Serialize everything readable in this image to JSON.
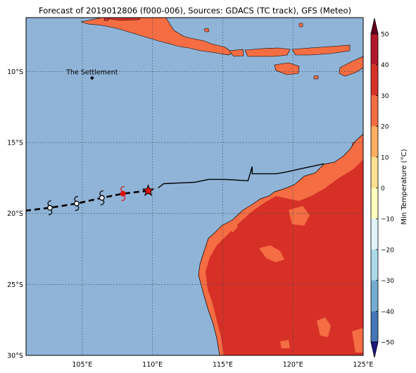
{
  "title": "Forecast of 2019012806 (f000-006), Sources: GDACS (TC track), GFS (Meteo)",
  "map": {
    "lon_range": [
      101,
      125
    ],
    "lat_range": [
      -30,
      -6.2
    ],
    "lon_ticks": [
      {
        "value": 105,
        "label": "105°E"
      },
      {
        "value": 110,
        "label": "110°E"
      },
      {
        "value": 115,
        "label": "115°E"
      },
      {
        "value": 120,
        "label": "120°E"
      },
      {
        "value": 125,
        "label": "125°E"
      }
    ],
    "lat_ticks": [
      {
        "value": -10,
        "label": "10°S"
      },
      {
        "value": -15,
        "label": "15°S"
      },
      {
        "value": -20,
        "label": "20°S"
      },
      {
        "value": -25,
        "label": "25°S"
      },
      {
        "value": -30,
        "label": "30°S"
      }
    ],
    "place_label": "The Settlement",
    "place_point": {
      "lon": 105.7,
      "lat": -10.45
    },
    "past_track": [
      [
        122.2,
        -16.5
      ],
      [
        120.8,
        -16.8
      ],
      [
        119.4,
        -17.1
      ],
      [
        118.8,
        -17.2
      ],
      [
        117.1,
        -17.2
      ],
      [
        117.1,
        -16.7
      ],
      [
        116.8,
        -17.7
      ],
      [
        115.2,
        -17.6
      ],
      [
        114.0,
        -17.6
      ],
      [
        113.0,
        -17.8
      ],
      [
        110.8,
        -17.9
      ],
      [
        110.4,
        -18.2
      ]
    ],
    "forecast_track": [
      [
        109.7,
        -18.4
      ],
      [
        107.9,
        -18.6
      ],
      [
        106.4,
        -18.9
      ],
      [
        104.6,
        -19.3
      ],
      [
        102.7,
        -19.6
      ],
      [
        101.0,
        -19.8
      ]
    ],
    "current_position": {
      "lon": 109.7,
      "lat": -18.4
    },
    "storm_symbols": [
      {
        "lon": 107.9,
        "lat": -18.6,
        "color": "#e01010"
      },
      {
        "lon": 106.4,
        "lat": -18.9,
        "color": "#000000"
      },
      {
        "lon": 104.6,
        "lat": -19.3,
        "color": "#000000"
      },
      {
        "lon": 102.7,
        "lat": -19.6,
        "color": "#000000"
      }
    ],
    "ocean_color": "#8fb4d8",
    "land_colors": {
      "orange": "#f46d43",
      "red": "#d73027"
    }
  },
  "colorbar": {
    "label": "Min Temperature (°C)",
    "ticks": [
      "50",
      "40",
      "30",
      "20",
      "10",
      "0",
      "−10",
      "−20",
      "−30",
      "−40",
      "−50"
    ],
    "colors": [
      "#67001f",
      "#b2182b",
      "#d73027",
      "#f46d43",
      "#fdae61",
      "#fee090",
      "#ffffbf",
      "#e0f3f8",
      "#abd9e9",
      "#74add1",
      "#4575b4",
      "#313695",
      "#1a1a80"
    ]
  }
}
